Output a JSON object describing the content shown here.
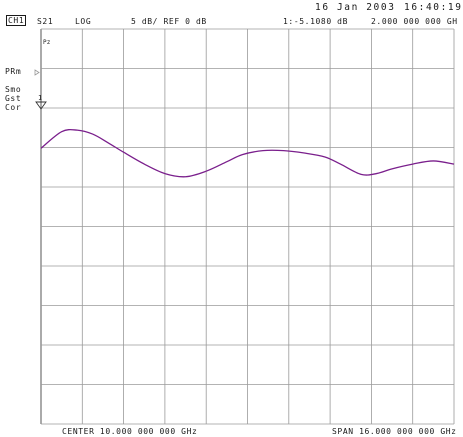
{
  "header": {
    "date": "16 Jan 2003",
    "time": "16:40:19",
    "channel": "CH1",
    "measurement": "S21",
    "format": "LOG",
    "scale": "5 dB/ REF 0 dB",
    "marker": "1:-5.1080 dB",
    "marker_freq": "2.000 000 000 GH"
  },
  "side_labels": {
    "prm": "PRm",
    "smo": "Smo",
    "gst": "Gst",
    "cor": "Cor",
    "ref_marker": "1",
    "small_mark": "Pz"
  },
  "footer": {
    "center": "CENTER 10.000 000 000 GHz",
    "span": "SPAN 16.000 000 000 GHz"
  },
  "chart_data": {
    "type": "line",
    "xlabel": "",
    "ylabel": "",
    "x_unit": "GHz",
    "y_unit": "dB",
    "xlim": [
      2,
      18
    ],
    "ylim": [
      -40,
      10
    ],
    "grid": true,
    "series": [
      {
        "color": "#7a1f8c",
        "x": [
          2.0,
          2.8,
          3.4,
          4.0,
          4.6,
          5.2,
          6.0,
          6.8,
          7.6,
          8.4,
          9.2,
          9.8,
          10.6,
          11.4,
          12.2,
          13.0,
          13.6,
          14.4,
          15.0,
          15.6,
          16.4,
          17.2,
          18.0
        ],
        "y": [
          -5.1,
          -3.0,
          -2.8,
          -3.3,
          -4.4,
          -5.6,
          -7.1,
          -8.3,
          -8.7,
          -8.0,
          -6.8,
          -5.9,
          -5.4,
          -5.4,
          -5.7,
          -6.2,
          -7.1,
          -8.4,
          -8.3,
          -7.7,
          -7.1,
          -6.7,
          -7.1
        ]
      }
    ]
  }
}
